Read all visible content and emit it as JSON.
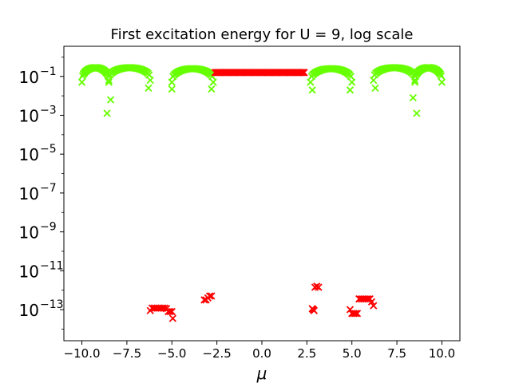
{
  "chart_data": {
    "type": "scatter",
    "title": "First excitation energy for U = 9, log scale",
    "xlabel": "μ",
    "ylabel": "",
    "xlim": [
      -11.0,
      11.0
    ],
    "ylog_lim": [
      -14.6,
      0.55
    ],
    "xticks": [
      -10.0,
      -7.5,
      -5.0,
      -2.5,
      0.0,
      2.5,
      5.0,
      7.5,
      10.0
    ],
    "xtick_labels": [
      "−10.0",
      "−7.5",
      "−5.0",
      "−2.5",
      "0.0",
      "2.5",
      "5.0",
      "7.5",
      "10.0"
    ],
    "yticks_log10": [
      -13,
      -11,
      -9,
      -7,
      -5,
      -3,
      -1
    ],
    "ytick_labels": [
      "10",
      "10",
      "10",
      "10",
      "10",
      "10",
      "10"
    ],
    "ytick_exponents": [
      "−13",
      "−11",
      "−9",
      "−7",
      "−5",
      "−3",
      "−1"
    ],
    "marker": "x",
    "colors": {
      "green": "#66ff00",
      "red": "#ff0000"
    },
    "series": [
      {
        "name": "green-arcs",
        "color": "#66ff00",
        "arcs": [
          {
            "x_start": -10.0,
            "x_end": -8.5,
            "peak_log10": -0.55,
            "side_dip_log10": -1.3
          },
          {
            "x_start": -8.5,
            "x_end": -6.2,
            "peak_log10": -0.55,
            "side_dip_log10": -1.2
          },
          {
            "x_start": -5.0,
            "x_end": -2.7,
            "peak_log10": -0.6,
            "side_dip_log10": -1.3
          },
          {
            "x_start": 2.7,
            "x_end": 5.0,
            "peak_log10": -0.6,
            "side_dip_log10": -1.3
          },
          {
            "x_start": 6.2,
            "x_end": 8.5,
            "peak_log10": -0.55,
            "side_dip_log10": -1.2
          },
          {
            "x_start": 8.5,
            "x_end": 10.0,
            "peak_log10": -0.55,
            "side_dip_log10": -1.3
          }
        ],
        "outliers": [
          {
            "x": -8.6,
            "log10": -2.9
          },
          {
            "x": -8.4,
            "log10": -2.2
          },
          {
            "x": -6.3,
            "log10": -1.6
          },
          {
            "x": -5.0,
            "log10": -1.65
          },
          {
            "x": -2.8,
            "log10": -1.65
          },
          {
            "x": 2.8,
            "log10": -1.7
          },
          {
            "x": 4.9,
            "log10": -1.7
          },
          {
            "x": 6.3,
            "log10": -1.6
          },
          {
            "x": 8.4,
            "log10": -2.1
          },
          {
            "x": 8.6,
            "log10": -2.9
          }
        ]
      },
      {
        "name": "red-plateau",
        "color": "#ff0000",
        "plateau": {
          "x_start": -2.6,
          "x_end": 2.35,
          "log10": -0.8
        },
        "points": [
          {
            "x": -6.2,
            "log10": -13.05
          },
          {
            "x": -6.1,
            "log10": -12.92
          },
          {
            "x": -6.0,
            "log10": -12.92
          },
          {
            "x": -5.9,
            "log10": -12.92
          },
          {
            "x": -5.8,
            "log10": -12.92
          },
          {
            "x": -5.7,
            "log10": -12.92
          },
          {
            "x": -5.6,
            "log10": -12.92
          },
          {
            "x": -5.5,
            "log10": -12.92
          },
          {
            "x": -5.4,
            "log10": -12.92
          },
          {
            "x": -5.3,
            "log10": -12.95
          },
          {
            "x": -5.2,
            "log10": -13.1
          },
          {
            "x": -5.1,
            "log10": -13.1
          },
          {
            "x": -5.0,
            "log10": -13.1
          },
          {
            "x": -4.95,
            "log10": -13.45
          },
          {
            "x": -3.2,
            "log10": -12.5
          },
          {
            "x": -3.1,
            "log10": -12.5
          },
          {
            "x": -3.0,
            "log10": -12.4
          },
          {
            "x": -2.9,
            "log10": -12.3
          },
          {
            "x": -2.8,
            "log10": -12.3
          },
          {
            "x": 2.8,
            "log10": -12.95
          },
          {
            "x": 2.9,
            "log10": -13.05
          },
          {
            "x": 2.85,
            "log10": -13.0
          },
          {
            "x": 2.95,
            "log10": -11.85
          },
          {
            "x": 3.05,
            "log10": -11.8
          },
          {
            "x": 3.15,
            "log10": -11.85
          },
          {
            "x": 4.9,
            "log10": -13.0
          },
          {
            "x": 5.0,
            "log10": -13.2
          },
          {
            "x": 5.1,
            "log10": -13.2
          },
          {
            "x": 5.2,
            "log10": -13.2
          },
          {
            "x": 5.3,
            "log10": -13.2
          },
          {
            "x": 5.4,
            "log10": -12.45
          },
          {
            "x": 5.5,
            "log10": -12.45
          },
          {
            "x": 5.6,
            "log10": -12.45
          },
          {
            "x": 5.7,
            "log10": -12.45
          },
          {
            "x": 5.8,
            "log10": -12.45
          },
          {
            "x": 5.9,
            "log10": -12.45
          },
          {
            "x": 6.0,
            "log10": -12.45
          },
          {
            "x": 6.1,
            "log10": -12.6
          },
          {
            "x": 6.2,
            "log10": -12.8
          }
        ]
      }
    ]
  }
}
